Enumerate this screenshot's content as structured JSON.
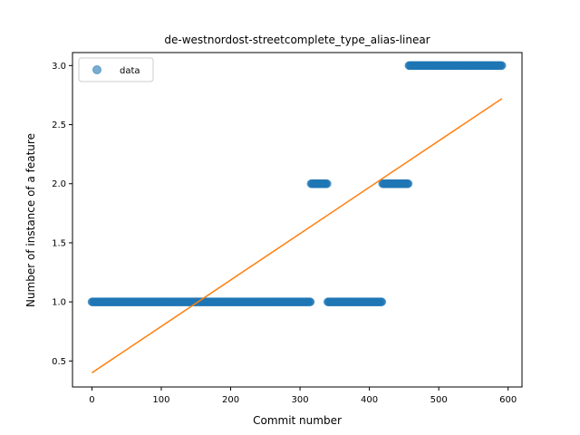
{
  "chart_data": {
    "type": "scatter",
    "title": "de-westnordost-streetcomplete_type_alias-linear",
    "xlabel": "Commit number",
    "ylabel": "Number of instance of a feature",
    "xlim": [
      -28,
      620
    ],
    "ylim": [
      0.28,
      3.11
    ],
    "xticks": [
      0,
      100,
      200,
      300,
      400,
      500,
      600
    ],
    "yticks": [
      0.5,
      1.0,
      1.5,
      2.0,
      2.5,
      3.0
    ],
    "xtick_labels": [
      "0",
      "100",
      "200",
      "300",
      "400",
      "500",
      "600"
    ],
    "ytick_labels": [
      "0.5",
      "1.0",
      "1.5",
      "2.0",
      "2.5",
      "3.0"
    ],
    "grid": false,
    "legend_position": "upper-left",
    "series": [
      {
        "name": "data",
        "kind": "points",
        "color": "#1f77b4",
        "alpha": 0.6,
        "segments": [
          {
            "x_start": 0,
            "x_end": 315,
            "y": 1.0
          },
          {
            "x_start": 316,
            "x_end": 339,
            "y": 2.0
          },
          {
            "x_start": 340,
            "x_end": 418,
            "y": 1.0
          },
          {
            "x_start": 419,
            "x_end": 456,
            "y": 2.0
          },
          {
            "x_start": 457,
            "x_end": 591,
            "y": 3.0
          }
        ]
      },
      {
        "kind": "line",
        "color": "#ff7f0e",
        "points": [
          [
            0,
            0.4
          ],
          [
            591,
            2.72
          ]
        ]
      }
    ]
  }
}
